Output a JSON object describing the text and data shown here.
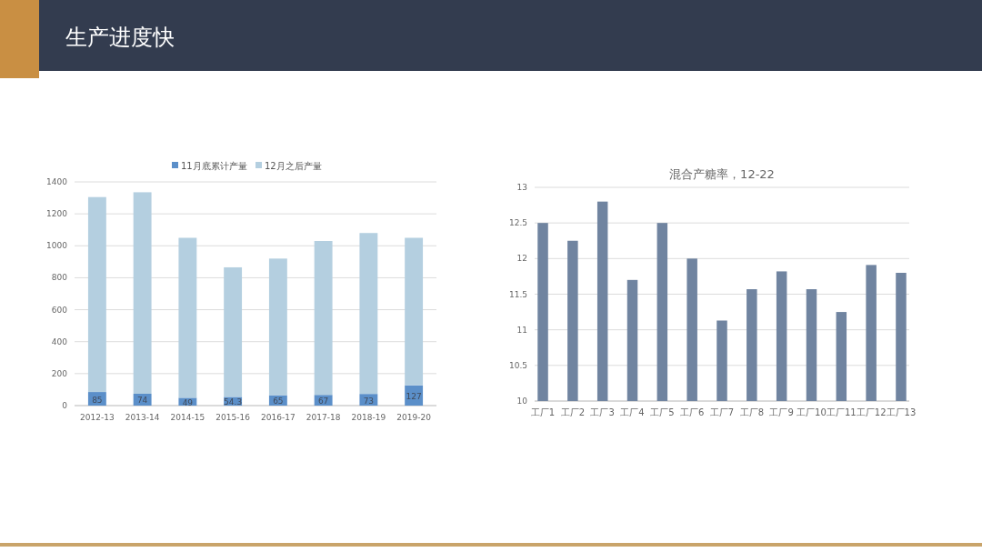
{
  "chart_data": [
    {
      "type": "bar",
      "title": "生产进度快",
      "stacked": true,
      "categories": [
        "2012-13",
        "2013-14",
        "2014-15",
        "2015-16",
        "2016-17",
        "2017-18",
        "2018-19",
        "2019-20"
      ],
      "series": [
        {
          "name": "11月底累计产量",
          "color": "#5b8fc9",
          "values": [
            85,
            74,
            49,
            54.3,
            65,
            67,
            73,
            127
          ],
          "value_labels": [
            "85",
            "74",
            "49",
            "54.3",
            "65",
            "67",
            "73",
            "127"
          ]
        },
        {
          "name": "12月之后产量",
          "color": "#b4cfe0",
          "values": [
            1220,
            1261,
            1001,
            811,
            855,
            963,
            1007,
            923
          ]
        }
      ],
      "ylim": [
        0,
        1400
      ],
      "yticks": [
        0,
        200,
        400,
        600,
        800,
        1000,
        1200,
        1400
      ],
      "grid": "y",
      "legend": "top"
    },
    {
      "type": "bar",
      "title": "混合产糖率，12-22",
      "categories": [
        "工厂1",
        "工厂2",
        "工厂3",
        "工厂4",
        "工厂5",
        "工厂6",
        "工厂7",
        "工厂8",
        "工厂9",
        "工厂10",
        "工厂11",
        "工厂12",
        "工厂13"
      ],
      "values": [
        12.5,
        12.25,
        12.8,
        11.7,
        12.5,
        12.0,
        11.13,
        11.57,
        11.82,
        11.57,
        11.25,
        11.91,
        11.8
      ],
      "color": "#7084a0",
      "ylim": [
        10,
        13
      ],
      "yticks": [
        10,
        10.5,
        11,
        11.5,
        12,
        12.5,
        13
      ],
      "grid": "y"
    }
  ]
}
